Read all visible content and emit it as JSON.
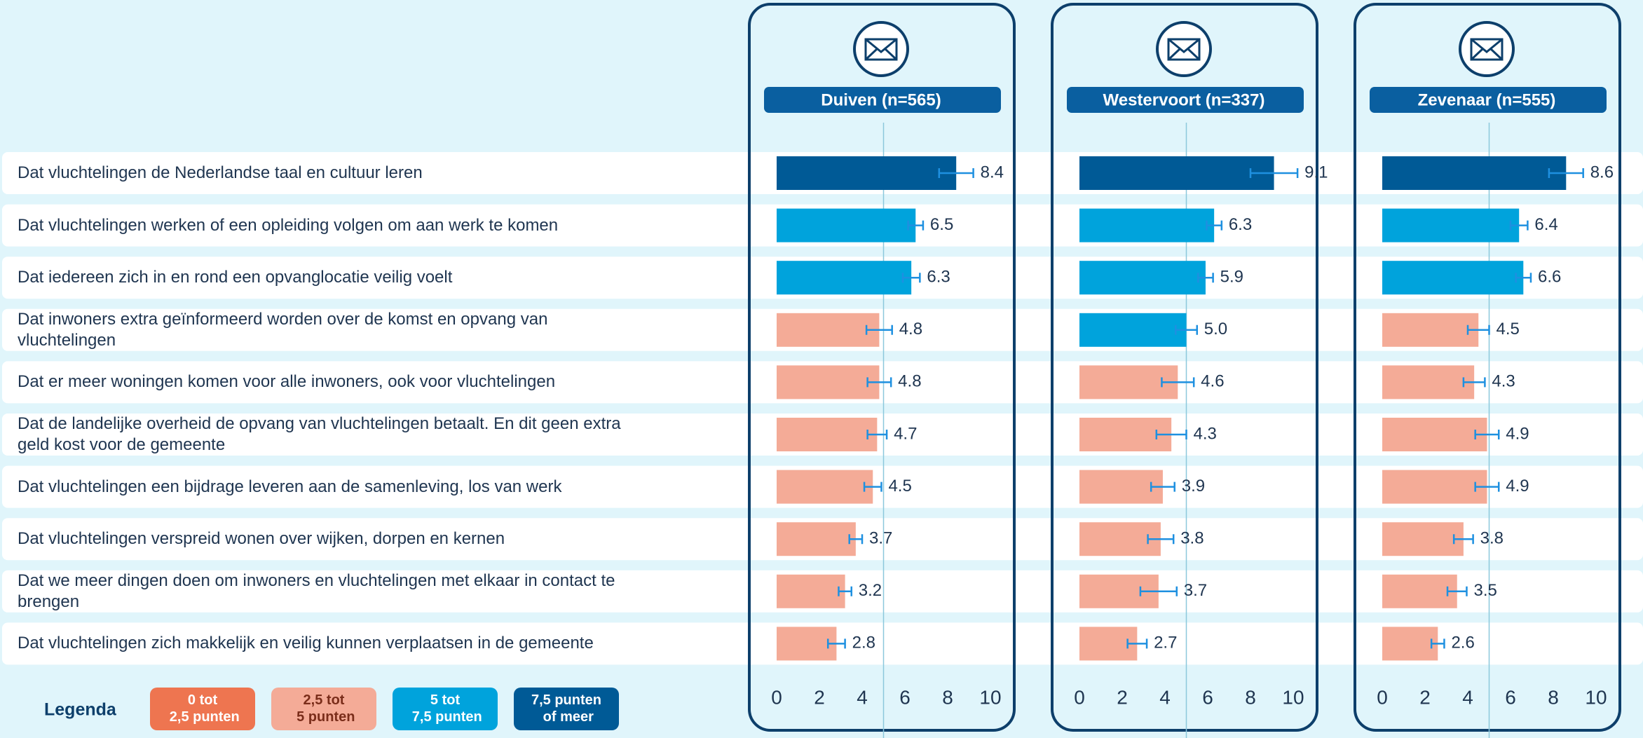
{
  "chart_data": {
    "type": "bar",
    "categories": [
      "Dat vluchtelingen de Nederlandse taal en cultuur leren",
      "Dat vluchtelingen werken of een opleiding volgen om aan werk te komen",
      "Dat iedereen zich in en rond een opvanglocatie veilig voelt",
      "Dat inwoners extra geïnformeerd worden over de komst en opvang van vluchtelingen",
      "Dat er meer woningen komen voor alle inwoners, ook voor vluchtelingen",
      "Dat de landelijke overheid de opvang van vluchtelingen betaalt. En dit geen extra geld kost voor de gemeente",
      "Dat vluchtelingen een bijdrage leveren aan de samenleving, los van werk",
      "Dat vluchtelingen verspreid wonen over wijken, dorpen en kernen",
      "Dat we meer dingen doen om inwoners en vluchtelingen met elkaar in contact te brengen",
      "Dat vluchtelingen zich makkelijk en veilig kunnen verplaatsen in de gemeente"
    ],
    "series": [
      {
        "name": "Duiven (n=565)",
        "values": [
          8.4,
          6.5,
          6.3,
          4.8,
          4.8,
          4.7,
          4.5,
          3.7,
          3.2,
          2.8
        ],
        "errors": [
          0.8,
          0.35,
          0.4,
          0.6,
          0.55,
          0.45,
          0.4,
          0.3,
          0.3,
          0.4
        ]
      },
      {
        "name": "Westervoort (n=337)",
        "values": [
          9.1,
          6.3,
          5.9,
          5.0,
          4.6,
          4.3,
          3.9,
          3.8,
          3.7,
          2.7
        ],
        "value_labels": [
          "9.1",
          "6.3",
          "5.9",
          "5.0",
          "4.6",
          "4.3",
          "3.9",
          "3.8",
          "3.7",
          "2.7"
        ],
        "errors": [
          1.1,
          0.35,
          0.35,
          0.5,
          0.75,
          0.7,
          0.55,
          0.6,
          0.85,
          0.45
        ]
      },
      {
        "name": "Zevenaar (n=555)",
        "values": [
          8.6,
          6.4,
          6.6,
          4.5,
          4.3,
          4.9,
          4.9,
          3.8,
          3.5,
          2.6
        ],
        "errors": [
          0.8,
          0.4,
          0.35,
          0.5,
          0.5,
          0.55,
          0.55,
          0.45,
          0.45,
          0.3
        ]
      }
    ],
    "xlim": [
      0,
      10
    ],
    "xticks": [
      0,
      2,
      4,
      6,
      8,
      10
    ],
    "reference_line": 5,
    "error_color": "#1e90e0",
    "legend": {
      "title": "Legenda",
      "items": [
        {
          "label": "0 tot 2,5 punten",
          "from": 0,
          "color": "#ee7550"
        },
        {
          "label": "2,5 tot 5 punten",
          "from": 2.5,
          "color": "#f4ab97"
        },
        {
          "label": "5 tot 7,5 punten",
          "from": 5,
          "color": "#00a3dc"
        },
        {
          "label": "7,5 punten of meer",
          "from": 7.5,
          "color": "#005a96"
        }
      ]
    }
  }
}
